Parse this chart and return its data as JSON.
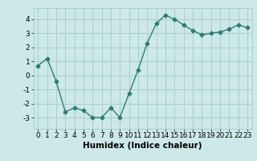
{
  "x": [
    0,
    1,
    2,
    3,
    4,
    5,
    6,
    7,
    8,
    9,
    10,
    11,
    12,
    13,
    14,
    15,
    16,
    17,
    18,
    19,
    20,
    21,
    22,
    23
  ],
  "y": [
    0.7,
    1.2,
    -0.4,
    -2.6,
    -2.3,
    -2.5,
    -3.0,
    -3.0,
    -2.3,
    -3.0,
    -1.3,
    0.4,
    2.3,
    3.7,
    4.3,
    4.0,
    3.6,
    3.2,
    2.9,
    3.0,
    3.1,
    3.3,
    3.6,
    3.4
  ],
  "line_color": "#2e7d72",
  "marker": "D",
  "marker_size": 2.5,
  "bg_color": "#cde8e8",
  "grid_color": "#aacece",
  "xlabel": "Humidex (Indice chaleur)",
  "ylim": [
    -3.8,
    4.8
  ],
  "xlim": [
    -0.5,
    23.5
  ],
  "yticks": [
    -3,
    -2,
    -1,
    0,
    1,
    2,
    3,
    4
  ],
  "xticks": [
    0,
    1,
    2,
    3,
    4,
    5,
    6,
    7,
    8,
    9,
    10,
    11,
    12,
    13,
    14,
    15,
    16,
    17,
    18,
    19,
    20,
    21,
    22,
    23
  ],
  "xlabel_fontsize": 7.5,
  "tick_fontsize": 6.5,
  "line_width": 1.0
}
